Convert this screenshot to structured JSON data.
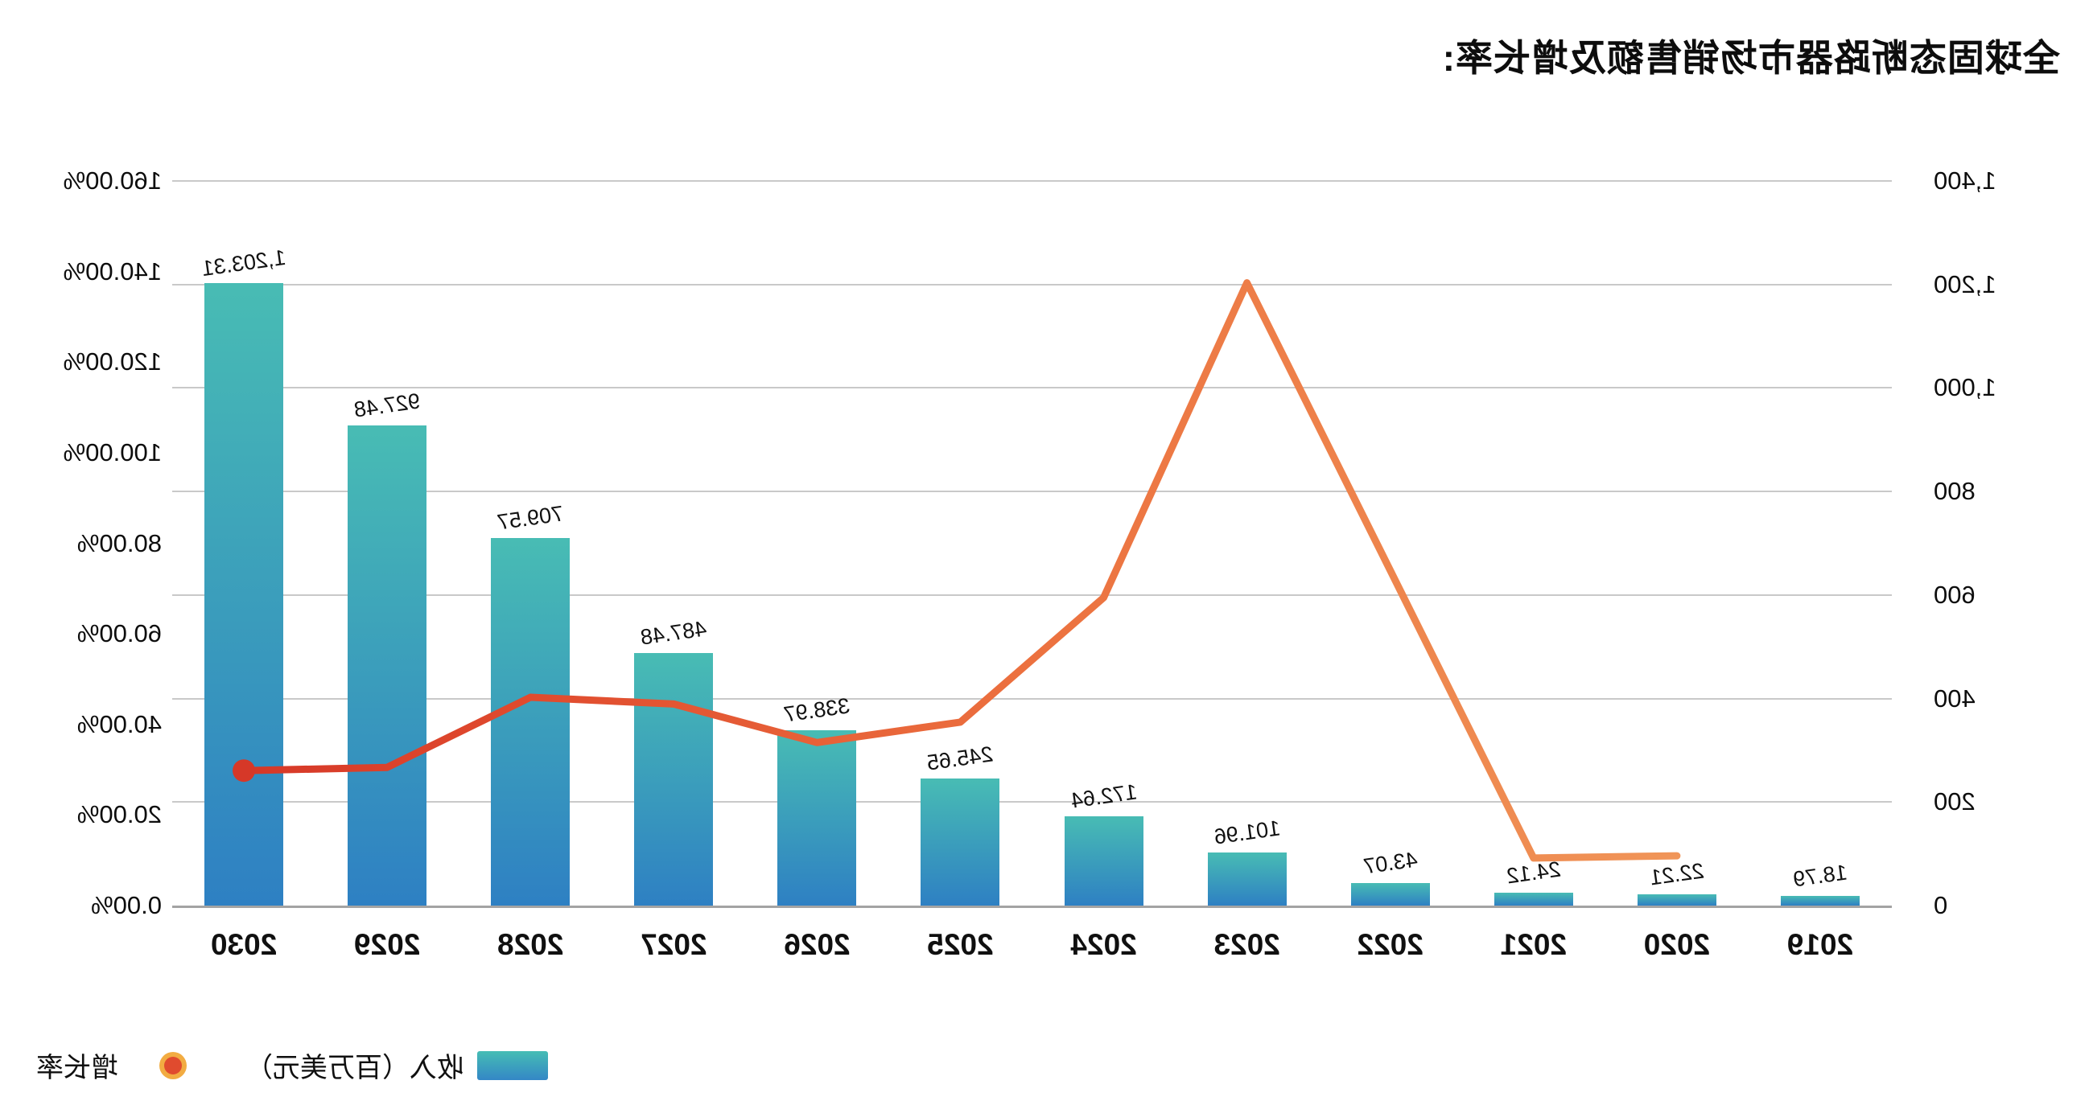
{
  "page": {
    "background": "#FFFFFF",
    "orientation_note": "entire chart appears horizontally mirrored (flipped text and axes)"
  },
  "chart_data": {
    "type": "bar+line",
    "title": "全球固态断路器市场销售额及增长率:",
    "categories": [
      "2019",
      "2020",
      "2021",
      "2022",
      "2023",
      "2024",
      "2025",
      "2026",
      "2027",
      "2028",
      "2029",
      "2030"
    ],
    "series": [
      {
        "name": "收入（百万美元）",
        "type": "bar",
        "yaxis": "left",
        "values": [
          18.79,
          22.21,
          24.12,
          43.07,
          101.96,
          172.64,
          245.65,
          338.97,
          487.48,
          709.57,
          927.48,
          1203.31
        ],
        "value_labels": [
          "18.79",
          "22.21",
          "24.12",
          "43.07",
          "101.96",
          "172.64",
          "245.65",
          "338.97",
          "487.48",
          "709.57",
          "927.48",
          "1,203.31"
        ]
      },
      {
        "name": "增长率",
        "type": "line",
        "yaxis": "right",
        "unit": "%",
        "values": [
          null,
          11,
          10.5,
          74,
          137.5,
          68,
          40.5,
          36,
          44.5,
          46,
          30.5,
          29.8
        ]
      }
    ],
    "left_axis": {
      "min": 0,
      "max": 1400,
      "ticks": [
        "0",
        "200",
        "400",
        "600",
        "800",
        "1,000",
        "1,200",
        "1,400"
      ]
    },
    "right_axis": {
      "min": 0,
      "max": 160,
      "ticks": [
        "0.00%",
        "20.00%",
        "40.00%",
        "60.00%",
        "80.00%",
        "100.00%",
        "120.00%",
        "140.00%",
        "160.00%"
      ]
    },
    "grid": true,
    "legend_position": "bottom (left in mirrored view)"
  },
  "legend": {
    "revenue_label": "收入（百万美元）",
    "growth_label": "增长率"
  },
  "colors": {
    "bar_gradient_top": "#48BCB4",
    "bar_gradient_bottom": "#2E80C3",
    "line_gradient": [
      "#F09558",
      "#EC713F",
      "#E04B2E",
      "#D63828"
    ],
    "line_end_dot": "#D63828",
    "legend_dot_ring": "#F2AC42",
    "gridline": "#C9C9C9",
    "axis_line": "#A3A3A3",
    "text": "#111111"
  }
}
